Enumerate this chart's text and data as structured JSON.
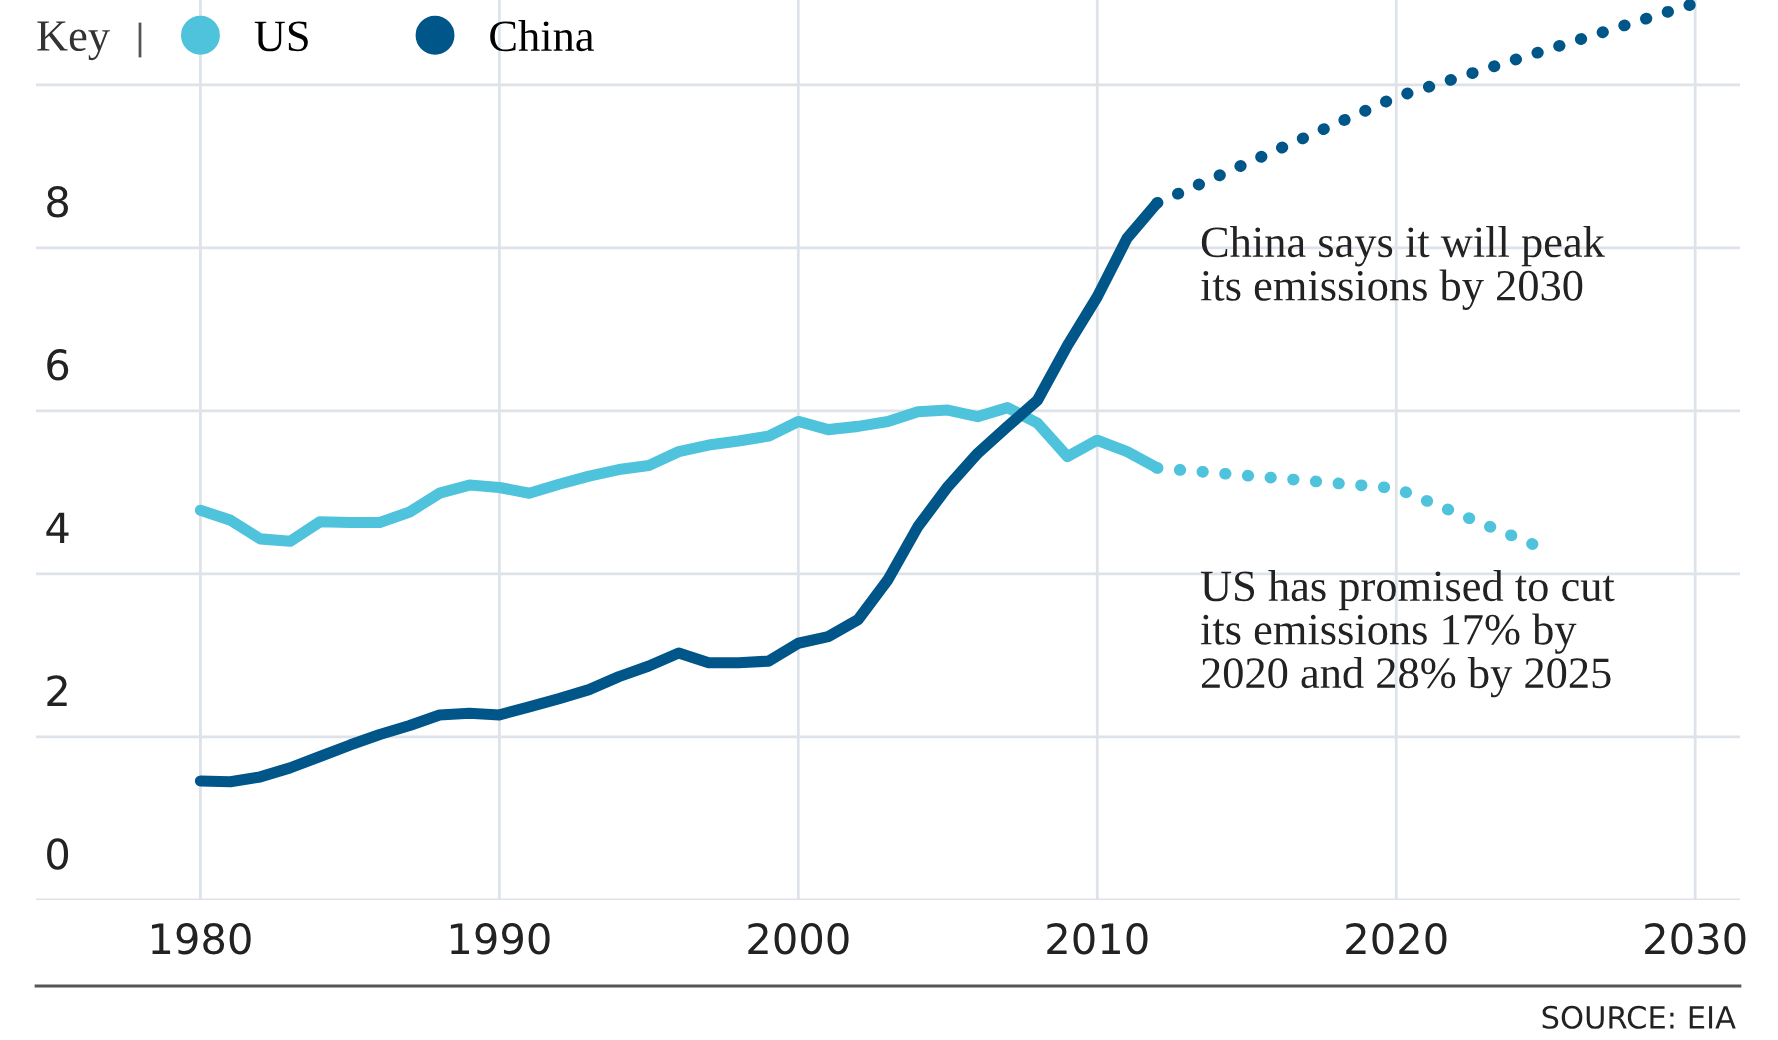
{
  "chart_data": {
    "type": "line",
    "legend_title": "Key",
    "legend": "top left",
    "grid": true,
    "marker": "none",
    "xlim": [
      1974.5,
      2031.5
    ],
    "xticks": [
      1980,
      1990,
      2000,
      2010,
      2020,
      2030
    ],
    "ylim": [
      0,
      11.04
    ],
    "yticks": [
      0,
      2,
      4,
      6,
      8,
      {
        "value": 10,
        "label": null
      }
    ],
    "series": [
      {
        "name": "US",
        "color": "#4fc3dc",
        "line_style": "solid",
        "x": [
          1980,
          1981,
          1982,
          1983,
          1984,
          1985,
          1986,
          1987,
          1988,
          1989,
          1990,
          1991,
          1992,
          1993,
          1994,
          1995,
          1996,
          1997,
          1998,
          1999,
          2000,
          2001,
          2002,
          2003,
          2004,
          2005,
          2006,
          2007,
          2008,
          2009,
          2010,
          2011,
          2012
        ],
        "values": [
          4.78,
          4.66,
          4.43,
          4.4,
          4.64,
          4.63,
          4.63,
          4.76,
          4.99,
          5.09,
          5.06,
          4.99,
          5.1,
          5.2,
          5.28,
          5.33,
          5.5,
          5.58,
          5.63,
          5.69,
          5.87,
          5.77,
          5.81,
          5.87,
          5.99,
          6.01,
          5.93,
          6.04,
          5.85,
          5.44,
          5.64,
          5.5,
          5.3
        ]
      },
      {
        "name": "China",
        "color": "#005689",
        "line_style": "solid",
        "x": [
          1980,
          1981,
          1982,
          1983,
          1984,
          1985,
          1986,
          1987,
          1988,
          1989,
          1990,
          1991,
          1992,
          1993,
          1994,
          1995,
          1996,
          1997,
          1998,
          1999,
          2000,
          2001,
          2002,
          2003,
          2004,
          2005,
          2006,
          2007,
          2008,
          2009,
          2010,
          2011,
          2012
        ],
        "values": [
          1.46,
          1.45,
          1.51,
          1.62,
          1.76,
          1.9,
          2.03,
          2.14,
          2.27,
          2.29,
          2.27,
          2.37,
          2.47,
          2.58,
          2.74,
          2.87,
          3.03,
          2.91,
          2.91,
          2.93,
          3.15,
          3.23,
          3.44,
          3.93,
          4.58,
          5.07,
          5.48,
          5.81,
          6.13,
          6.8,
          7.4,
          8.12,
          8.55
        ]
      },
      {
        "color": "#4fc3dc",
        "line_style": "dotted",
        "x": [
          2012,
          2020,
          2025
        ],
        "values": [
          5.3,
          5.05,
          4.3
        ]
      },
      {
        "color": "#005689",
        "line_style": "dotted",
        "x": [
          2012,
          2020,
          2030
        ],
        "values": [
          8.55,
          9.85,
          11.0
        ]
      }
    ],
    "annotations": [
      "China says it will peak\nits emissions by 2030",
      "US has promised to cut\nits emissions 17% by\n2020 and 28% by 2025",
      "SOURCE: EIA"
    ]
  }
}
